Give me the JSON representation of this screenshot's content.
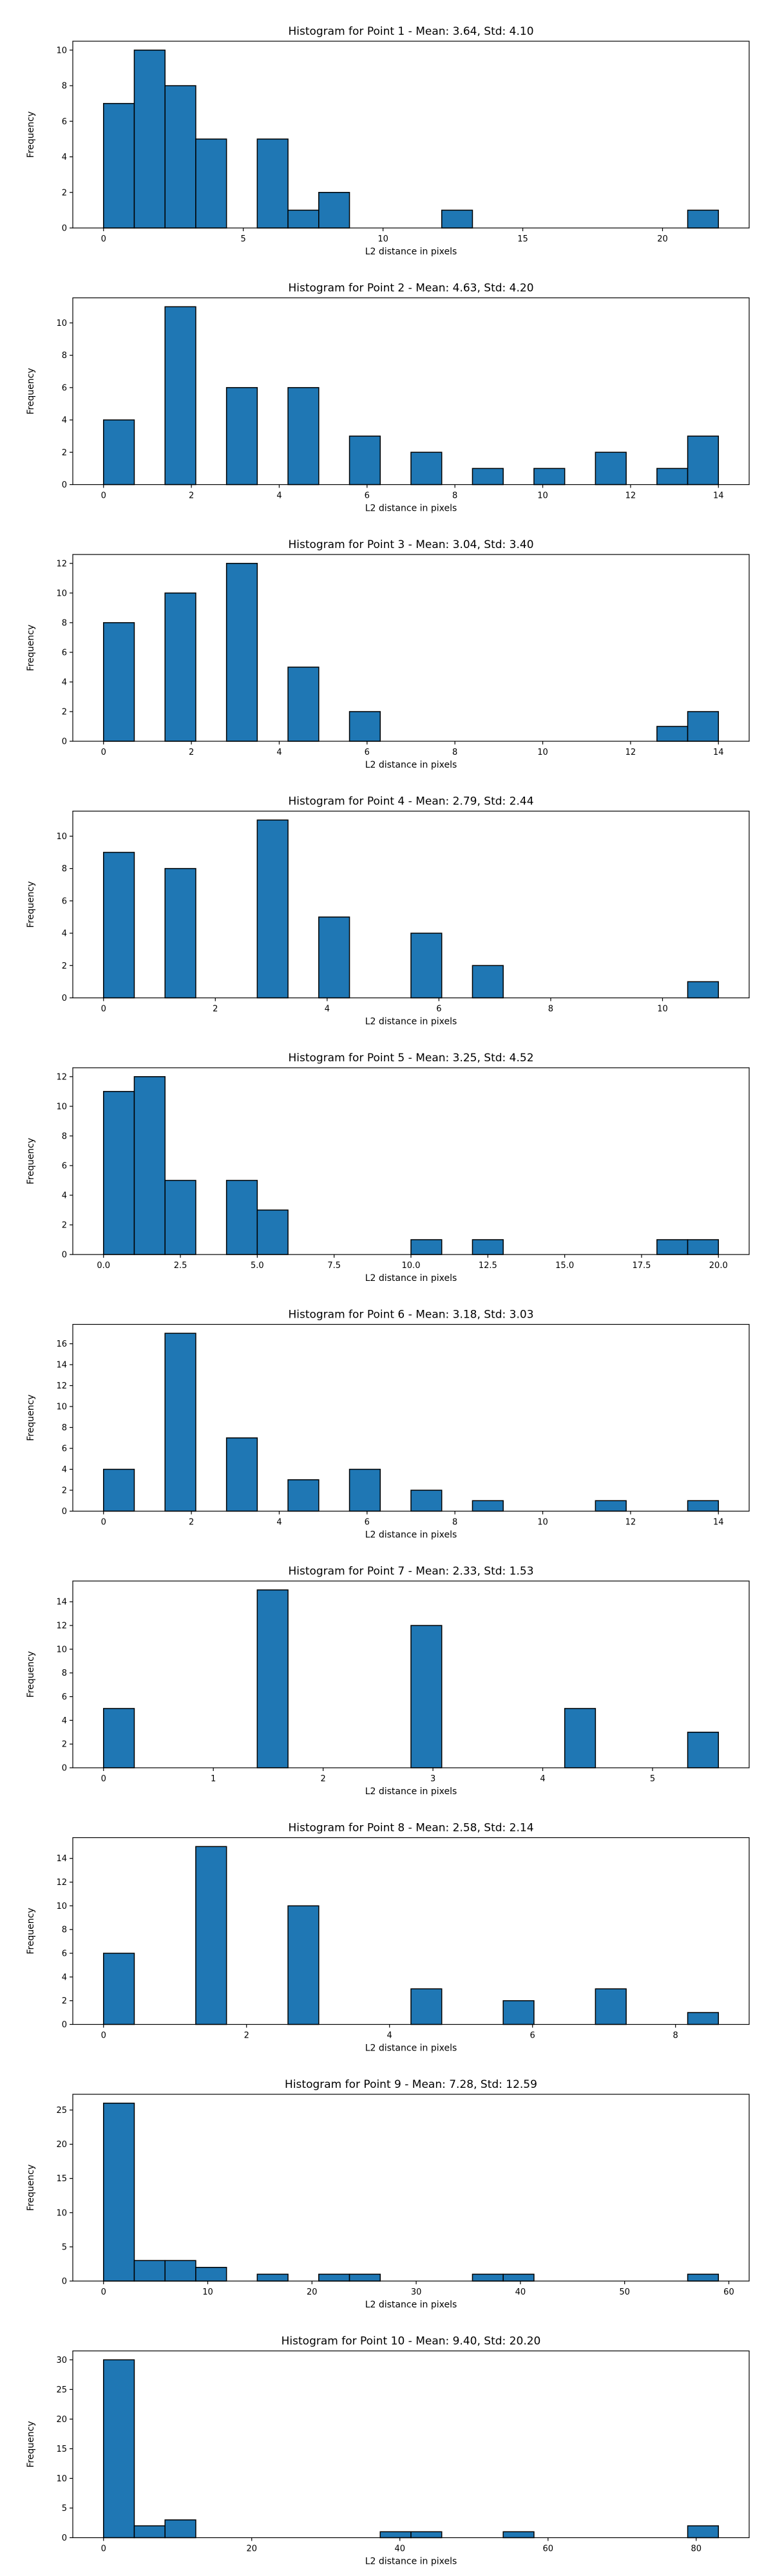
{
  "chart_data": [
    {
      "type": "bar",
      "title": "Histogram for Point 1 - Mean: 3.64, Std: 4.10",
      "xlabel": "L2 distance in pixels",
      "ylabel": "Frequency",
      "xlim": [
        -1.1,
        23.1
      ],
      "ylim": [
        0,
        10.5
      ],
      "xticks": [
        0,
        5,
        10,
        15,
        20
      ],
      "xtick_labels": [
        "0",
        "5",
        "10",
        "15",
        "20"
      ],
      "yticks": [
        0,
        2,
        4,
        6,
        8,
        10
      ],
      "ytick_labels": [
        "0",
        "2",
        "4",
        "6",
        "8",
        "10"
      ],
      "bins": [
        [
          0,
          1.1,
          7
        ],
        [
          1.1,
          2.2,
          10
        ],
        [
          2.2,
          3.3,
          8
        ],
        [
          3.3,
          4.4,
          5
        ],
        [
          5.5,
          6.6,
          5
        ],
        [
          6.6,
          7.7,
          1
        ],
        [
          7.7,
          8.8,
          2
        ],
        [
          12.1,
          13.2,
          1
        ],
        [
          20.9,
          22.0,
          1
        ]
      ]
    },
    {
      "type": "bar",
      "title": "Histogram for Point 2 - Mean: 4.63, Std: 4.20",
      "xlabel": "L2 distance in pixels",
      "ylabel": "Frequency",
      "xlim": [
        -0.7,
        14.7
      ],
      "ylim": [
        0,
        11.55
      ],
      "xticks": [
        0,
        2,
        4,
        6,
        8,
        10,
        12,
        14
      ],
      "xtick_labels": [
        "0",
        "2",
        "4",
        "6",
        "8",
        "10",
        "12",
        "14"
      ],
      "yticks": [
        0,
        2,
        4,
        6,
        8,
        10
      ],
      "ytick_labels": [
        "0",
        "2",
        "4",
        "6",
        "8",
        "10"
      ],
      "bins": [
        [
          0,
          0.7,
          4
        ],
        [
          1.4,
          2.1,
          11
        ],
        [
          2.8,
          3.5,
          6
        ],
        [
          4.2,
          4.9,
          6
        ],
        [
          5.6,
          6.3,
          3
        ],
        [
          7.0,
          7.7,
          2
        ],
        [
          8.4,
          9.1,
          1
        ],
        [
          9.8,
          10.5,
          1
        ],
        [
          11.2,
          11.9,
          2
        ],
        [
          12.6,
          13.3,
          1
        ],
        [
          13.3,
          14.0,
          3
        ]
      ]
    },
    {
      "type": "bar",
      "title": "Histogram for Point 3 - Mean: 3.04, Std: 3.40",
      "xlabel": "L2 distance in pixels",
      "ylabel": "Frequency",
      "xlim": [
        -0.7,
        14.7
      ],
      "ylim": [
        0,
        12.6
      ],
      "xticks": [
        0,
        2,
        4,
        6,
        8,
        10,
        12,
        14
      ],
      "xtick_labels": [
        "0",
        "2",
        "4",
        "6",
        "8",
        "10",
        "12",
        "14"
      ],
      "yticks": [
        0,
        2,
        4,
        6,
        8,
        10,
        12
      ],
      "ytick_labels": [
        "0",
        "2",
        "4",
        "6",
        "8",
        "10",
        "12"
      ],
      "bins": [
        [
          0,
          0.7,
          8
        ],
        [
          1.4,
          2.1,
          10
        ],
        [
          2.8,
          3.5,
          12
        ],
        [
          4.2,
          4.9,
          5
        ],
        [
          5.6,
          6.3,
          2
        ],
        [
          12.6,
          13.3,
          1
        ],
        [
          13.3,
          14.0,
          2
        ]
      ]
    },
    {
      "type": "bar",
      "title": "Histogram for Point 4 - Mean: 2.79, Std: 2.44",
      "xlabel": "L2 distance in pixels",
      "ylabel": "Frequency",
      "xlim": [
        -0.55,
        11.55
      ],
      "ylim": [
        0,
        11.55
      ],
      "xticks": [
        0,
        2,
        4,
        6,
        8,
        10
      ],
      "xtick_labels": [
        "0",
        "2",
        "4",
        "6",
        "8",
        "10"
      ],
      "yticks": [
        0,
        2,
        4,
        6,
        8,
        10
      ],
      "ytick_labels": [
        "0",
        "2",
        "4",
        "6",
        "8",
        "10"
      ],
      "bins": [
        [
          0,
          0.55,
          9
        ],
        [
          1.1,
          1.65,
          8
        ],
        [
          2.75,
          3.3,
          11
        ],
        [
          3.85,
          4.4,
          5
        ],
        [
          5.5,
          6.05,
          4
        ],
        [
          6.6,
          7.15,
          2
        ],
        [
          10.45,
          11.0,
          1
        ]
      ]
    },
    {
      "type": "bar",
      "title": "Histogram for Point 5 - Mean: 3.25, Std: 4.52",
      "xlabel": "L2 distance in pixels",
      "ylabel": "Frequency",
      "xlim": [
        -1.0,
        21.0
      ],
      "ylim": [
        0,
        12.6
      ],
      "xticks": [
        0,
        2.5,
        5,
        7.5,
        10,
        12.5,
        15,
        17.5,
        20
      ],
      "xtick_labels": [
        "0.0",
        "2.5",
        "5.0",
        "7.5",
        "10.0",
        "12.5",
        "15.0",
        "17.5",
        "20.0"
      ],
      "yticks": [
        0,
        2,
        4,
        6,
        8,
        10,
        12
      ],
      "ytick_labels": [
        "0",
        "2",
        "4",
        "6",
        "8",
        "10",
        "12"
      ],
      "bins": [
        [
          0,
          1,
          11
        ],
        [
          1,
          2,
          12
        ],
        [
          2,
          3,
          5
        ],
        [
          4,
          5,
          5
        ],
        [
          5,
          6,
          3
        ],
        [
          10,
          11,
          1
        ],
        [
          12,
          13,
          1
        ],
        [
          18,
          19,
          1
        ],
        [
          19,
          20,
          1
        ]
      ]
    },
    {
      "type": "bar",
      "title": "Histogram for Point 6 - Mean: 3.18, Std: 3.03",
      "xlabel": "L2 distance in pixels",
      "ylabel": "Frequency",
      "xlim": [
        -0.7,
        14.7
      ],
      "ylim": [
        0,
        17.85
      ],
      "xticks": [
        0,
        2,
        4,
        6,
        8,
        10,
        12,
        14
      ],
      "xtick_labels": [
        "0",
        "2",
        "4",
        "6",
        "8",
        "10",
        "12",
        "14"
      ],
      "yticks": [
        0,
        2,
        4,
        6,
        8,
        10,
        12,
        14,
        16
      ],
      "ytick_labels": [
        "0",
        "2",
        "4",
        "6",
        "8",
        "10",
        "12",
        "14",
        "16"
      ],
      "bins": [
        [
          0,
          0.7,
          4
        ],
        [
          1.4,
          2.1,
          17
        ],
        [
          2.8,
          3.5,
          7
        ],
        [
          4.2,
          4.9,
          3
        ],
        [
          5.6,
          6.3,
          4
        ],
        [
          7.0,
          7.7,
          2
        ],
        [
          8.4,
          9.1,
          1
        ],
        [
          11.2,
          11.9,
          1
        ],
        [
          13.3,
          14.0,
          1
        ]
      ]
    },
    {
      "type": "bar",
      "title": "Histogram for Point 7 - Mean: 2.33, Std: 1.53",
      "xlabel": "L2 distance in pixels",
      "ylabel": "Frequency",
      "xlim": [
        -0.28,
        5.88
      ],
      "ylim": [
        0,
        15.75
      ],
      "xticks": [
        0,
        1,
        2,
        3,
        4,
        5
      ],
      "xtick_labels": [
        "0",
        "1",
        "2",
        "3",
        "4",
        "5"
      ],
      "yticks": [
        0,
        2,
        4,
        6,
        8,
        10,
        12,
        14
      ],
      "ytick_labels": [
        "0",
        "2",
        "4",
        "6",
        "8",
        "10",
        "12",
        "14"
      ],
      "bins": [
        [
          0,
          0.28,
          5
        ],
        [
          1.4,
          1.68,
          15
        ],
        [
          2.8,
          3.08,
          12
        ],
        [
          4.2,
          4.48,
          5
        ],
        [
          5.32,
          5.6,
          3
        ]
      ]
    },
    {
      "type": "bar",
      "title": "Histogram for Point 8 - Mean: 2.58, Std: 2.14",
      "xlabel": "L2 distance in pixels",
      "ylabel": "Frequency",
      "xlim": [
        -0.43,
        9.03
      ],
      "ylim": [
        0,
        15.75
      ],
      "xticks": [
        0,
        2,
        4,
        6,
        8
      ],
      "xtick_labels": [
        "0",
        "2",
        "4",
        "6",
        "8"
      ],
      "yticks": [
        0,
        2,
        4,
        6,
        8,
        10,
        12,
        14
      ],
      "ytick_labels": [
        "0",
        "2",
        "4",
        "6",
        "8",
        "10",
        "12",
        "14"
      ],
      "bins": [
        [
          0,
          0.43,
          6
        ],
        [
          1.29,
          1.72,
          15
        ],
        [
          2.58,
          3.01,
          10
        ],
        [
          4.3,
          4.73,
          3
        ],
        [
          5.59,
          6.02,
          2
        ],
        [
          6.88,
          7.31,
          3
        ],
        [
          8.17,
          8.6,
          1
        ]
      ]
    },
    {
      "type": "bar",
      "title": "Histogram for Point 9 - Mean: 7.28, Std: 12.59",
      "xlabel": "L2 distance in pixels",
      "ylabel": "Frequency",
      "xlim": [
        -2.95,
        61.95
      ],
      "ylim": [
        0,
        27.3
      ],
      "xticks": [
        0,
        10,
        20,
        30,
        40,
        50,
        60
      ],
      "xtick_labels": [
        "0",
        "10",
        "20",
        "30",
        "40",
        "50",
        "60"
      ],
      "yticks": [
        0,
        5,
        10,
        15,
        20,
        25
      ],
      "ytick_labels": [
        "0",
        "5",
        "10",
        "15",
        "20",
        "25"
      ],
      "bins": [
        [
          0,
          2.95,
          26
        ],
        [
          2.95,
          5.9,
          3
        ],
        [
          5.9,
          8.85,
          3
        ],
        [
          8.85,
          11.8,
          2
        ],
        [
          14.75,
          17.7,
          1
        ],
        [
          20.65,
          23.6,
          1
        ],
        [
          23.6,
          26.55,
          1
        ],
        [
          35.4,
          38.35,
          1
        ],
        [
          38.35,
          41.3,
          1
        ],
        [
          56.05,
          59.0,
          1
        ]
      ]
    },
    {
      "type": "bar",
      "title": "Histogram for Point 10 - Mean: 9.40, Std: 20.20",
      "xlabel": "L2 distance in pixels",
      "ylabel": "Frequency",
      "xlim": [
        -4.15,
        87.15
      ],
      "ylim": [
        0,
        31.5
      ],
      "xticks": [
        0,
        20,
        40,
        60,
        80
      ],
      "xtick_labels": [
        "0",
        "20",
        "40",
        "60",
        "80"
      ],
      "yticks": [
        0,
        5,
        10,
        15,
        20,
        25,
        30
      ],
      "ytick_labels": [
        "0",
        "5",
        "10",
        "15",
        "20",
        "25",
        "30"
      ],
      "bins": [
        [
          0,
          4.15,
          30
        ],
        [
          4.15,
          8.3,
          2
        ],
        [
          8.3,
          12.45,
          3
        ],
        [
          37.35,
          41.5,
          1
        ],
        [
          41.5,
          45.65,
          1
        ],
        [
          53.95,
          58.1,
          1
        ],
        [
          78.85,
          83.0,
          2
        ]
      ]
    }
  ]
}
